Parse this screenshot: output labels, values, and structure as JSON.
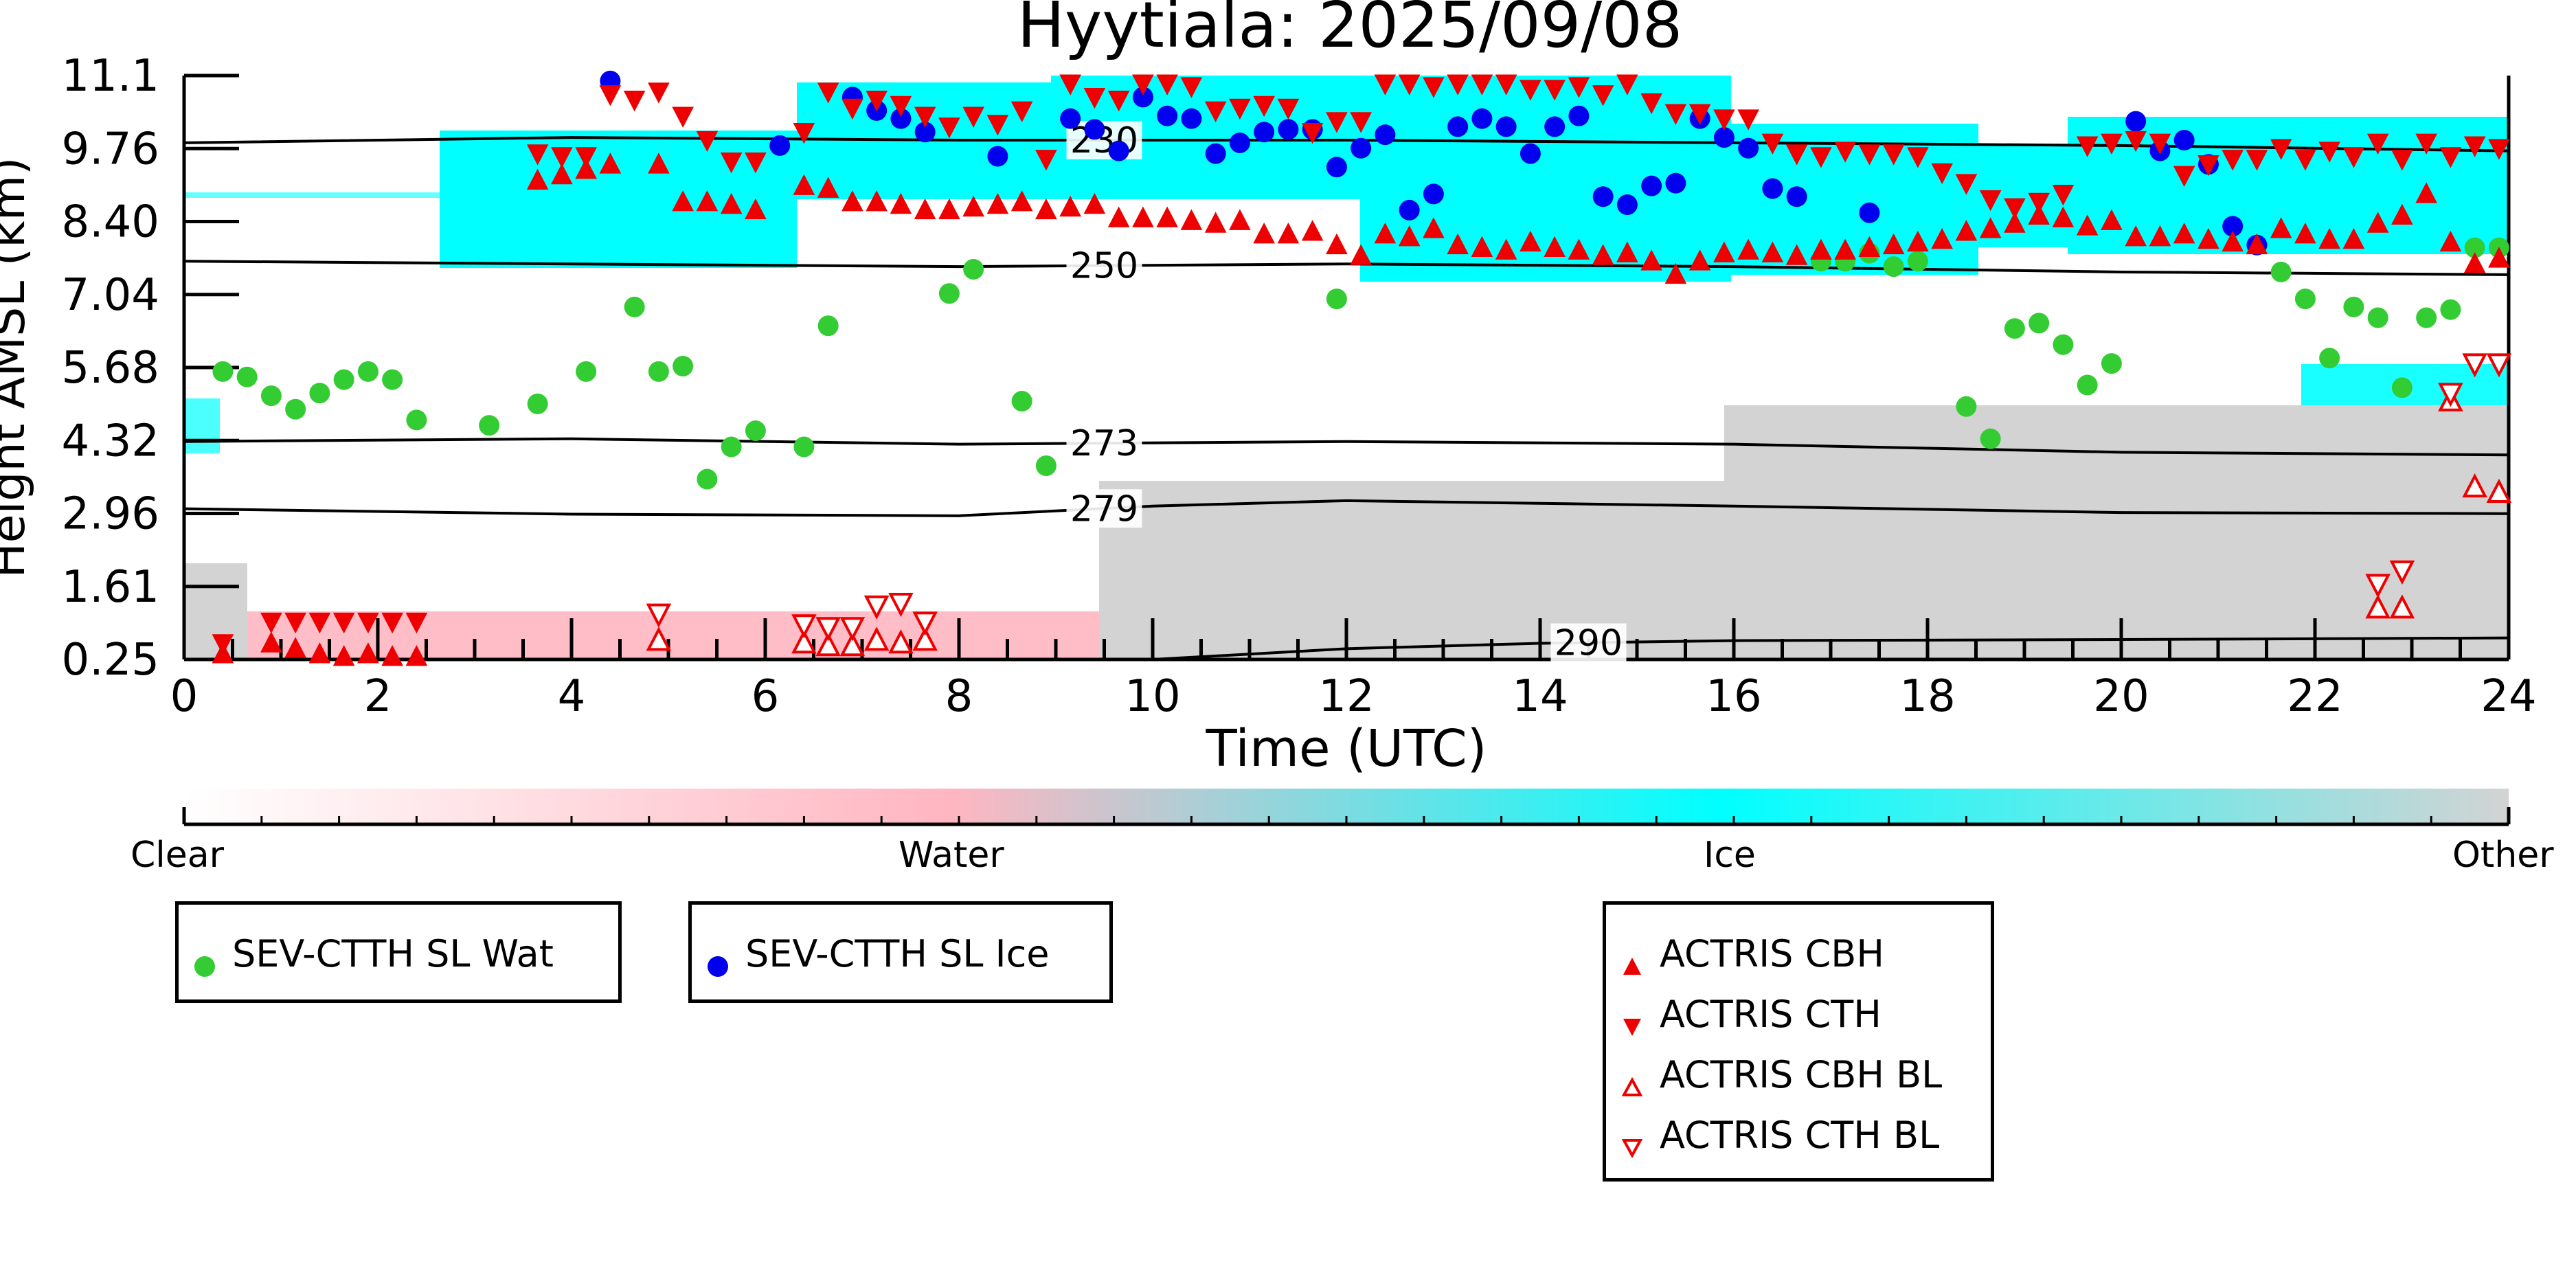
{
  "chart_data": {
    "type": "scatter",
    "title": "Hyytiala: 2025/09/08",
    "xlabel": "Time (UTC)",
    "ylabel": "Height AMSL (km)",
    "xlim": [
      0,
      24
    ],
    "ylim": [
      0.25,
      11.1
    ],
    "xticks": [
      "0",
      "2",
      "4",
      "6",
      "8",
      "10",
      "12",
      "14",
      "16",
      "18",
      "20",
      "22",
      "24"
    ],
    "yticks": [
      "0.25",
      "1.61",
      "2.96",
      "4.32",
      "5.68",
      "7.04",
      "8.40",
      "9.76",
      "11.1"
    ],
    "colorbar": {
      "labels": [
        "Clear",
        "Water",
        "Ice",
        "Other"
      ],
      "colors": [
        "#ffffff",
        "#ffb6c1",
        "#00ffff",
        "#d3d3d3"
      ]
    },
    "isotherms": [
      {
        "label": "230",
        "x": [
          0,
          4,
          8,
          12,
          16,
          20,
          24
        ],
        "y": [
          9.85,
          9.95,
          9.9,
          9.9,
          9.85,
          9.8,
          9.7
        ]
      },
      {
        "label": "250",
        "x": [
          0,
          4,
          8,
          12,
          16,
          20,
          24
        ],
        "y": [
          7.65,
          7.6,
          7.55,
          7.6,
          7.55,
          7.45,
          7.4
        ]
      },
      {
        "label": "273",
        "x": [
          0,
          4,
          8,
          12,
          16,
          20,
          24
        ],
        "y": [
          4.3,
          4.35,
          4.25,
          4.3,
          4.25,
          4.1,
          4.05
        ]
      },
      {
        "label": "279",
        "x": [
          0,
          4,
          8,
          10,
          12,
          16,
          20,
          24
        ],
        "y": [
          3.05,
          2.95,
          2.92,
          3.1,
          3.2,
          3.1,
          2.98,
          2.96
        ]
      },
      {
        "label": "290",
        "x": [
          10,
          12,
          14,
          16,
          20,
          24
        ],
        "y": [
          0.25,
          0.45,
          0.55,
          0.6,
          0.62,
          0.65
        ]
      }
    ],
    "series": [
      {
        "name": "SEV-CTTH SL Wat",
        "color": "#33cc33",
        "marker": "circle",
        "x": [
          0.4,
          0.65,
          0.9,
          1.15,
          1.4,
          1.65,
          1.9,
          2.15,
          2.4,
          3.15,
          3.65,
          4.15,
          4.65,
          4.9,
          5.15,
          5.4,
          5.65,
          5.9,
          6.4,
          6.65,
          7.9,
          8.15,
          8.65,
          8.9,
          11.9,
          16.9,
          17.15,
          17.4,
          17.65,
          17.9,
          18.4,
          18.65,
          18.9,
          19.15,
          19.4,
          19.65,
          19.9,
          21.65,
          21.9,
          22.15,
          22.4,
          22.65,
          22.9,
          23.15,
          23.4,
          23.65,
          23.9
        ],
        "y": [
          5.6,
          5.5,
          5.15,
          4.9,
          5.2,
          5.45,
          5.6,
          5.45,
          4.7,
          4.6,
          5.0,
          5.6,
          6.8,
          5.6,
          5.7,
          3.6,
          4.2,
          4.5,
          4.2,
          6.45,
          7.05,
          7.5,
          5.05,
          3.85,
          6.95,
          7.65,
          7.65,
          7.8,
          7.55,
          7.65,
          4.95,
          4.35,
          6.4,
          6.5,
          6.1,
          5.35,
          5.75,
          7.45,
          6.95,
          5.85,
          6.8,
          6.6,
          5.3,
          6.6,
          6.75,
          7.9,
          7.9
        ]
      },
      {
        "name": "SEV-CTTH SL Ice",
        "color": "#0000ee",
        "marker": "circle",
        "x": [
          4.4,
          6.15,
          6.9,
          7.15,
          7.4,
          7.65,
          8.4,
          9.15,
          9.4,
          9.65,
          9.9,
          10.15,
          10.4,
          10.65,
          10.9,
          11.15,
          11.4,
          11.65,
          11.9,
          12.15,
          12.4,
          12.65,
          12.9,
          13.15,
          13.4,
          13.65,
          13.9,
          14.15,
          14.4,
          14.65,
          14.9,
          15.15,
          15.4,
          15.65,
          15.9,
          16.15,
          16.4,
          16.65,
          17.4,
          20.15,
          20.4,
          20.65,
          20.9,
          21.15,
          21.4
        ],
        "y": [
          11.0,
          9.8,
          10.7,
          10.45,
          10.3,
          10.05,
          9.6,
          10.3,
          10.1,
          9.7,
          10.7,
          10.35,
          10.3,
          9.65,
          9.85,
          10.05,
          10.1,
          10.1,
          9.4,
          9.75,
          10.0,
          8.6,
          8.9,
          10.15,
          10.3,
          10.15,
          9.65,
          10.15,
          10.35,
          8.85,
          8.7,
          9.05,
          9.1,
          10.3,
          9.95,
          9.75,
          9.0,
          8.85,
          8.55,
          10.25,
          9.7,
          9.9,
          9.45,
          8.3,
          7.95
        ]
      },
      {
        "name": "ACTRIS CBH",
        "color": "#ee0000",
        "marker": "triangle-up",
        "filled": true,
        "x": [
          0.4,
          0.9,
          1.15,
          1.4,
          1.65,
          1.9,
          2.15,
          2.4,
          3.65,
          3.9,
          4.15,
          4.4,
          4.9,
          5.15,
          5.4,
          5.65,
          5.9,
          6.4,
          6.65,
          6.9,
          7.15,
          7.4,
          7.65,
          7.9,
          8.15,
          8.4,
          8.65,
          8.9,
          9.15,
          9.4,
          9.65,
          9.9,
          10.15,
          10.4,
          10.65,
          10.9,
          11.15,
          11.4,
          11.65,
          11.9,
          12.15,
          12.4,
          12.65,
          12.9,
          13.15,
          13.4,
          13.65,
          13.9,
          14.15,
          14.4,
          14.65,
          14.9,
          15.15,
          15.4,
          15.65,
          15.9,
          16.15,
          16.4,
          16.65,
          16.9,
          17.15,
          17.4,
          17.65,
          17.9,
          18.15,
          18.4,
          18.65,
          18.9,
          19.15,
          19.4,
          19.65,
          19.9,
          20.15,
          20.4,
          20.65,
          20.9,
          21.15,
          21.4,
          21.65,
          21.9,
          22.15,
          22.4,
          22.65,
          22.9,
          23.15,
          23.4,
          23.65,
          23.9
        ],
        "y": [
          0.35,
          0.55,
          0.45,
          0.35,
          0.3,
          0.35,
          0.3,
          0.3,
          9.15,
          9.25,
          9.35,
          9.45,
          9.45,
          8.75,
          8.75,
          8.7,
          8.6,
          9.05,
          9.0,
          8.75,
          8.75,
          8.7,
          8.6,
          8.6,
          8.65,
          8.7,
          8.75,
          8.6,
          8.65,
          8.7,
          8.45,
          8.45,
          8.45,
          8.4,
          8.35,
          8.4,
          8.15,
          8.15,
          8.2,
          7.95,
          7.75,
          8.15,
          8.1,
          8.25,
          7.95,
          7.9,
          7.85,
          8.0,
          7.9,
          7.85,
          7.75,
          7.8,
          7.65,
          7.4,
          7.65,
          7.8,
          7.85,
          7.8,
          7.75,
          7.85,
          7.85,
          7.9,
          7.95,
          8.0,
          8.05,
          8.2,
          8.25,
          8.35,
          8.5,
          8.45,
          8.3,
          8.4,
          8.1,
          8.1,
          8.15,
          8.05,
          8.0,
          7.95,
          8.25,
          8.15,
          8.05,
          8.05,
          8.35,
          8.5,
          8.9,
          8.0,
          7.6,
          7.7
        ]
      },
      {
        "name": "ACTRIS CTH",
        "color": "#ee0000",
        "marker": "triangle-down",
        "filled": true,
        "x": [
          0.4,
          0.9,
          1.15,
          1.4,
          1.65,
          1.9,
          2.15,
          2.4,
          3.65,
          3.9,
          4.15,
          4.4,
          4.65,
          4.9,
          5.15,
          5.4,
          5.65,
          5.9,
          6.4,
          6.65,
          6.9,
          7.15,
          7.4,
          7.65,
          7.9,
          8.15,
          8.4,
          8.65,
          8.9,
          9.15,
          9.4,
          9.65,
          9.9,
          10.15,
          10.4,
          10.65,
          10.9,
          11.15,
          11.4,
          11.65,
          11.9,
          12.15,
          12.4,
          12.65,
          12.9,
          13.15,
          13.4,
          13.65,
          13.9,
          14.15,
          14.4,
          14.65,
          14.9,
          15.15,
          15.4,
          15.65,
          15.9,
          16.15,
          16.4,
          16.65,
          16.9,
          17.15,
          17.4,
          17.65,
          17.9,
          18.15,
          18.4,
          18.65,
          18.9,
          19.15,
          19.4,
          19.65,
          19.9,
          20.15,
          20.4,
          20.65,
          20.9,
          21.15,
          21.4,
          21.65,
          21.9,
          22.15,
          22.4,
          22.65,
          22.9,
          23.15,
          23.4,
          23.65,
          23.9
        ],
        "y": [
          0.55,
          0.95,
          0.95,
          0.95,
          0.95,
          0.95,
          0.95,
          0.95,
          9.65,
          9.6,
          9.6,
          10.75,
          10.65,
          10.8,
          10.35,
          9.9,
          9.5,
          9.5,
          10.05,
          10.8,
          10.5,
          10.65,
          10.55,
          10.35,
          10.15,
          10.35,
          10.2,
          10.45,
          9.55,
          10.95,
          10.7,
          10.65,
          10.95,
          10.95,
          10.9,
          10.45,
          10.5,
          10.55,
          10.5,
          10.05,
          10.25,
          10.25,
          10.95,
          10.95,
          10.9,
          10.95,
          10.95,
          10.95,
          10.85,
          10.85,
          10.9,
          10.75,
          10.95,
          10.6,
          10.4,
          10.4,
          10.3,
          10.3,
          9.85,
          9.65,
          9.6,
          9.7,
          9.65,
          9.65,
          9.6,
          9.3,
          9.1,
          8.8,
          8.65,
          8.75,
          8.9,
          9.8,
          9.85,
          9.9,
          9.85,
          9.25,
          9.45,
          9.55,
          9.55,
          9.75,
          9.55,
          9.7,
          9.6,
          9.85,
          9.55,
          9.85,
          9.6,
          9.8,
          9.75
        ]
      },
      {
        "name": "ACTRIS CBH BL",
        "color": "#ee0000",
        "marker": "triangle-up",
        "filled": false,
        "x": [
          4.9,
          6.4,
          6.65,
          6.9,
          7.15,
          7.4,
          7.65,
          22.65,
          22.9,
          23.4,
          23.65,
          23.9
        ],
        "y": [
          0.6,
          0.55,
          0.5,
          0.5,
          0.6,
          0.55,
          0.6,
          1.2,
          1.2,
          5.05,
          3.45,
          3.35
        ]
      },
      {
        "name": "ACTRIS CTH BL",
        "color": "#ee0000",
        "marker": "triangle-down",
        "filled": false,
        "x": [
          4.9,
          6.4,
          6.65,
          6.9,
          7.15,
          7.4,
          7.65,
          22.65,
          22.9,
          23.4,
          23.65,
          23.9
        ],
        "y": [
          1.1,
          0.9,
          0.85,
          0.85,
          1.25,
          1.3,
          0.95,
          1.65,
          1.9,
          5.2,
          5.75,
          5.75
        ]
      }
    ]
  },
  "legends": {
    "wat": "SEV-CTTH SL Wat",
    "ice": "SEV-CTTH SL Ice",
    "actris": [
      "ACTRIS CBH",
      "ACTRIS CTH",
      "ACTRIS CBH BL",
      "ACTRIS CTH BL"
    ]
  }
}
